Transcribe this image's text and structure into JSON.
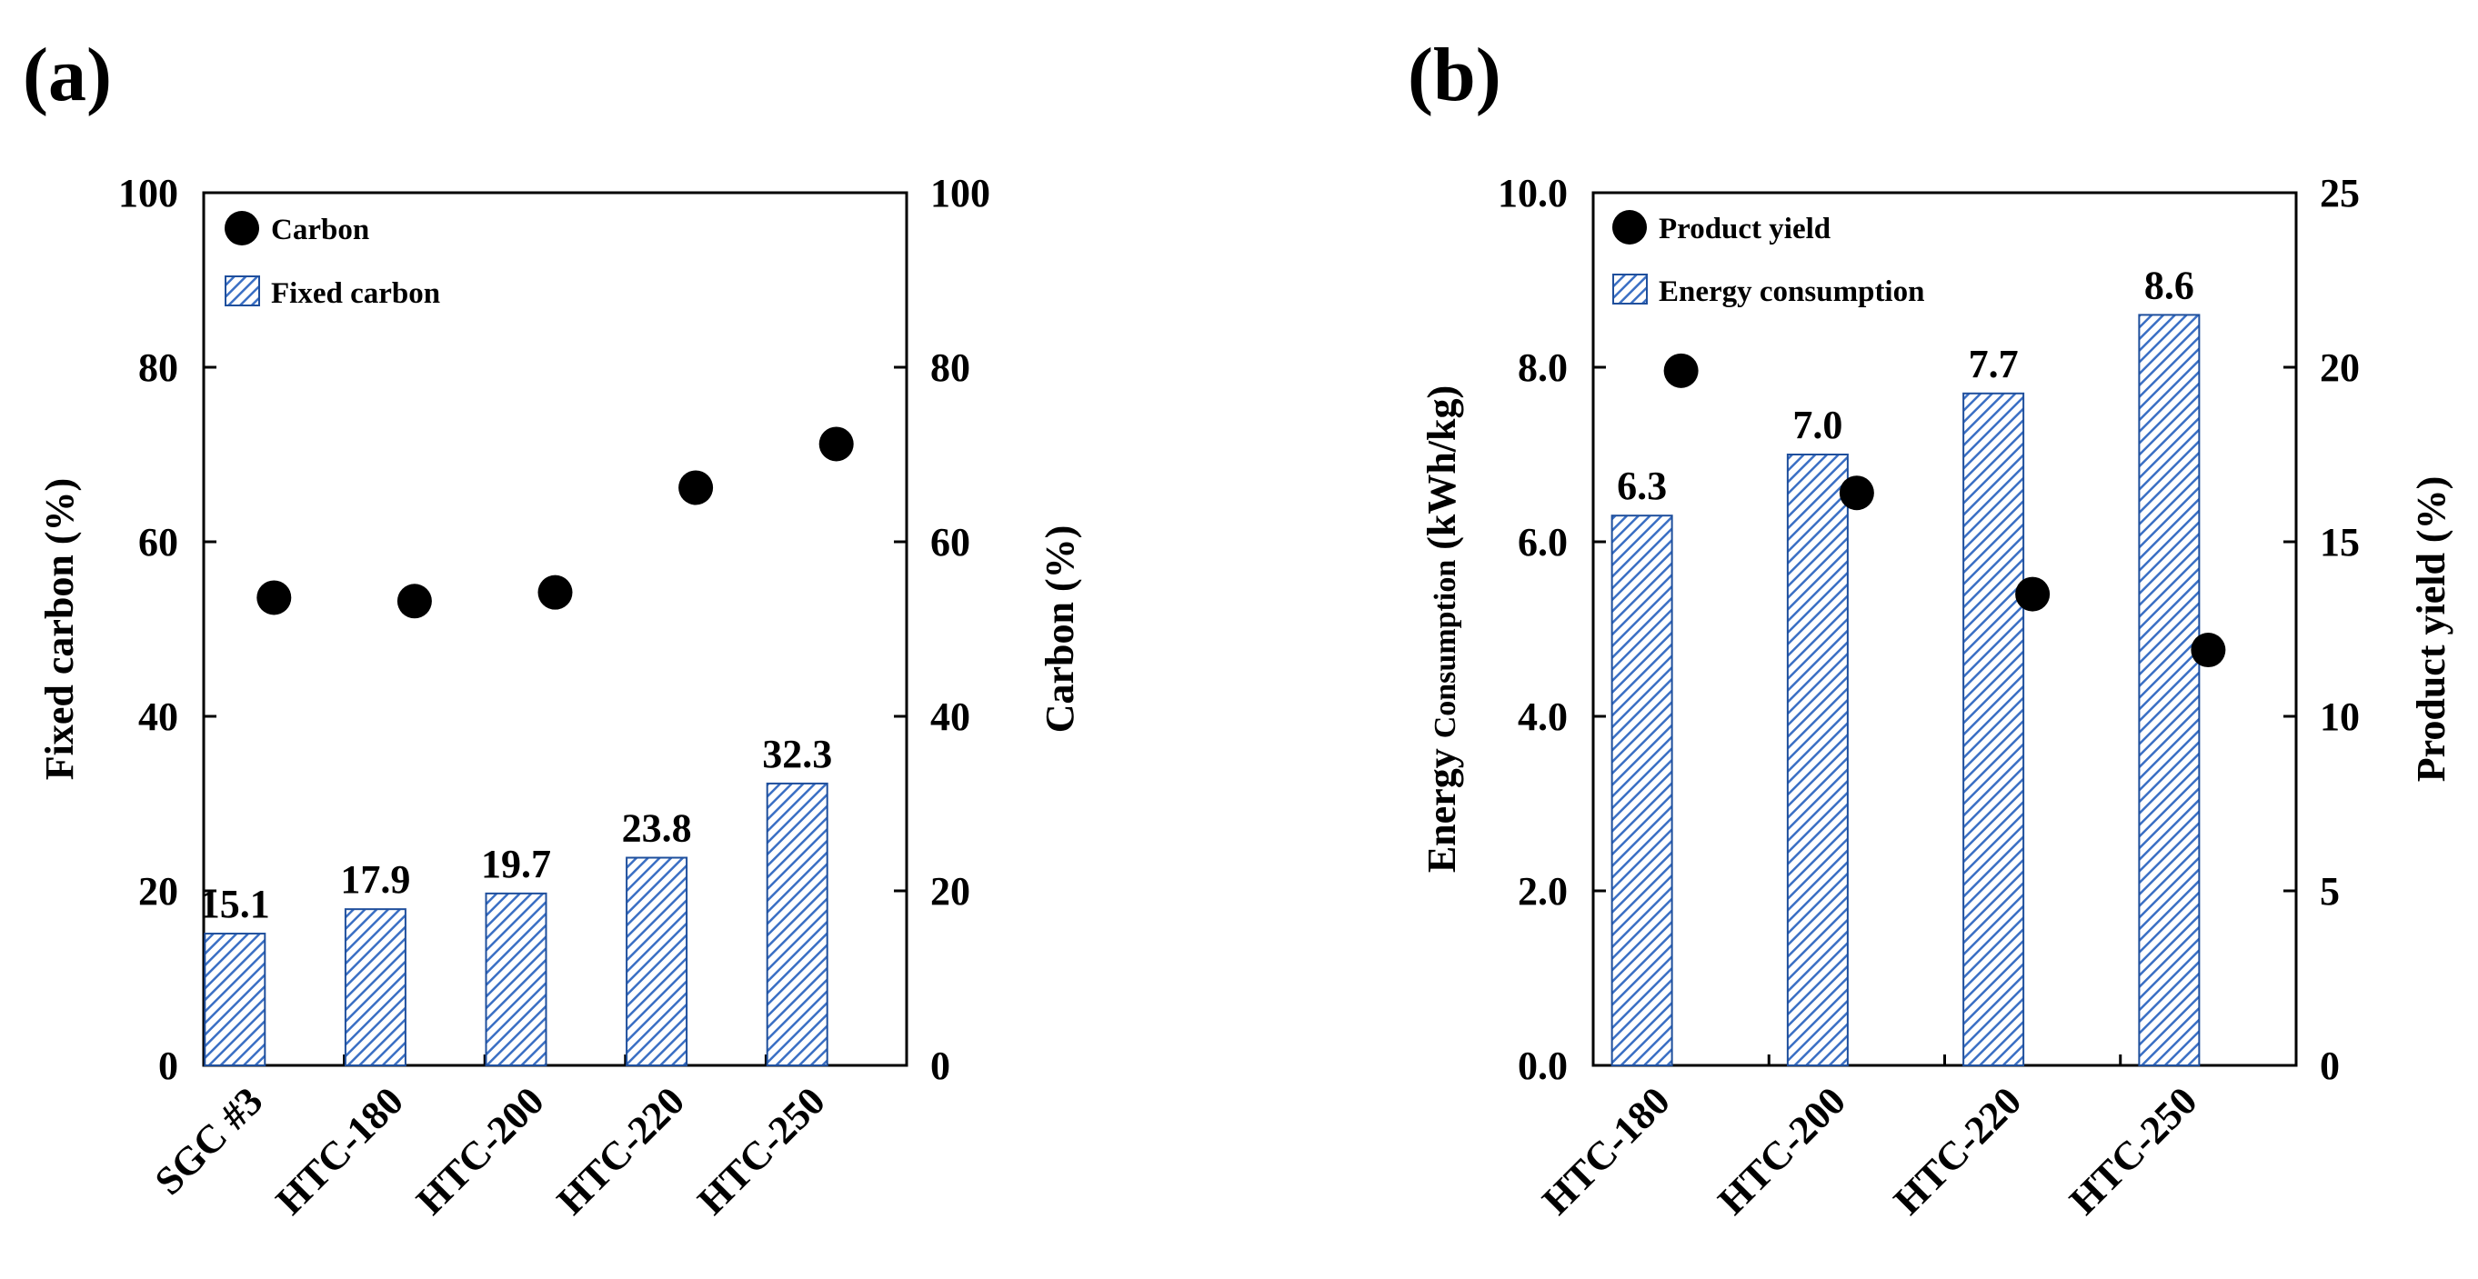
{
  "chart_data": [
    {
      "panel_label": "(a)",
      "type": "bar",
      "categories": [
        "SGC #3",
        "HTC-180",
        "HTC-200",
        "HTC-220",
        "HTC-250"
      ],
      "series": [
        {
          "name": "Fixed carbon",
          "kind": "bar",
          "axis": "left",
          "values": [
            15.1,
            17.9,
            19.7,
            23.8,
            32.3
          ]
        },
        {
          "name": "Carbon",
          "kind": "scatter",
          "axis": "right",
          "values": [
            53.6,
            53.2,
            54.2,
            66.2,
            71.2
          ]
        }
      ],
      "data_labels": [
        "15.1",
        "17.9",
        "19.7",
        "23.8",
        "32.3"
      ],
      "ylabel_left": "Fixed carbon (%)",
      "ylabel_right": "Carbon (%)",
      "ylim_left": [
        0,
        100
      ],
      "ylim_right": [
        0,
        100
      ],
      "yticks_left": [
        "0",
        "20",
        "40",
        "60",
        "80",
        "100"
      ],
      "yticks_right": [
        "0",
        "20",
        "40",
        "60",
        "80",
        "100"
      ],
      "legend": [
        "Carbon",
        "Fixed carbon"
      ],
      "legend_position": "top-left",
      "grid": false,
      "bar_fill": "blue diagonal hatch"
    },
    {
      "panel_label": "(b)",
      "type": "bar",
      "categories": [
        "HTC-180",
        "HTC-200",
        "HTC-220",
        "HTC-250"
      ],
      "series": [
        {
          "name": "Energy consumption",
          "kind": "bar",
          "axis": "left",
          "values": [
            6.3,
            7.0,
            7.7,
            8.6
          ]
        },
        {
          "name": "Product yield",
          "kind": "scatter",
          "axis": "right",
          "values": [
            19.9,
            16.4,
            13.5,
            11.9
          ]
        }
      ],
      "data_labels": [
        "6.3",
        "7.0",
        "7.7",
        "8.6"
      ],
      "ylabel_left_main": "Energy",
      "ylabel_left_small": "Consumption",
      "ylabel_left_unit": "(kWh/kg)",
      "ylabel_right": "Product yield (%)",
      "ylim_left": [
        0,
        10
      ],
      "ylim_right": [
        0,
        25
      ],
      "yticks_left": [
        "0.0",
        "2.0",
        "4.0",
        "6.0",
        "8.0",
        "10.0"
      ],
      "yticks_right": [
        "0",
        "5",
        "10",
        "15",
        "20",
        "25"
      ],
      "legend": [
        "Product yield",
        "Energy consumption"
      ],
      "legend_position": "top-left",
      "grid": false,
      "bar_fill": "blue diagonal hatch"
    }
  ],
  "colors": {
    "bar_hatch": "#3a6fc4",
    "bar_background": "#ffffff",
    "bar_edge": "#1f4f9c",
    "marker": "#000000",
    "axis": "#000000"
  }
}
